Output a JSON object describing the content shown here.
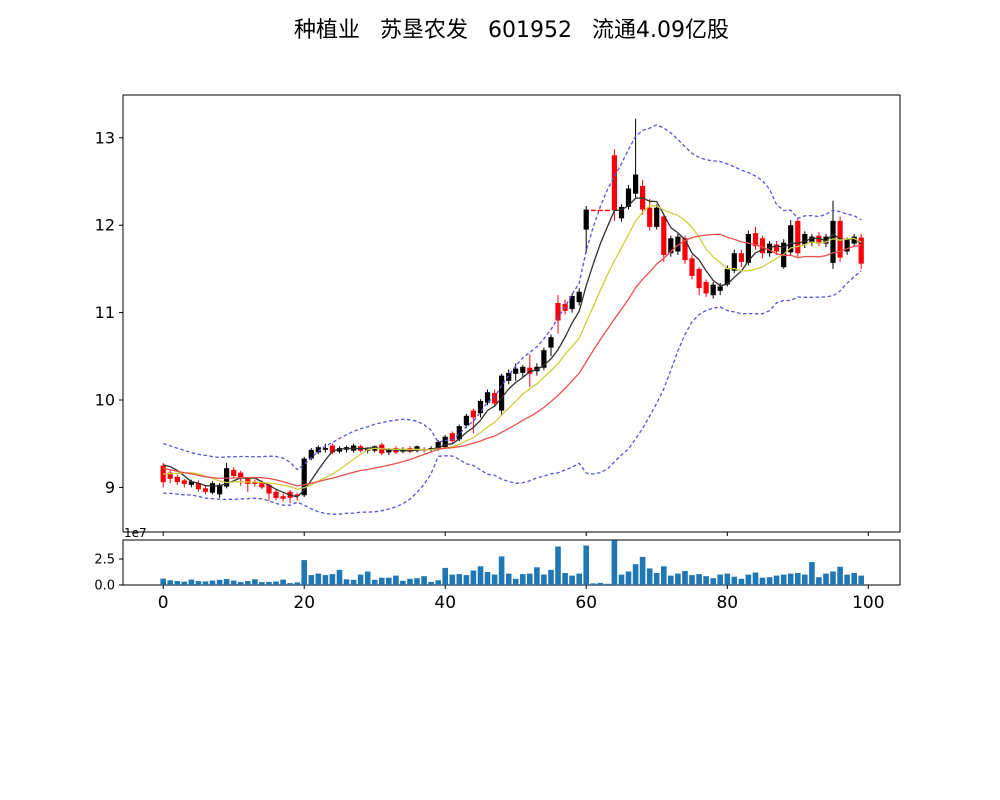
{
  "chart_data": {
    "type": "candlestick",
    "title": "种植业 苏垦农发 601952 流通4.09亿股",
    "xlim": [
      -5.7,
      104.5
    ],
    "xticks": [
      0,
      20,
      40,
      60,
      80,
      100
    ],
    "price_panel": {
      "ylim": [
        8.49,
        13.49
      ],
      "yticks": [
        9,
        10,
        11,
        12,
        13
      ]
    },
    "volume_panel": {
      "ylim_1e7": [
        0,
        4.33
      ],
      "ytick_values_1e7": [
        0,
        2.5
      ],
      "ytick_labels": [
        "0.0",
        "2.5"
      ],
      "offset_text": "1e7"
    },
    "candles": {
      "open": [
        9.25,
        9.17,
        9.12,
        9.08,
        9.03,
        9.05,
        8.99,
        8.94,
        8.92,
        9.01,
        9.2,
        9.17,
        9.1,
        9.06,
        9.06,
        9.03,
        8.95,
        8.9,
        8.95,
        8.92,
        8.91,
        9.33,
        9.4,
        9.43,
        9.48,
        9.41,
        9.43,
        9.42,
        9.47,
        9.42,
        9.42,
        9.49,
        9.4,
        9.45,
        9.41,
        9.45,
        9.42,
        9.44,
        9.43,
        9.44,
        9.46,
        9.62,
        9.55,
        9.71,
        9.88,
        9.85,
        9.97,
        10.08,
        9.88,
        10.22,
        10.3,
        10.31,
        10.37,
        10.33,
        10.37,
        10.6,
        11.11,
        11.1,
        11.04,
        11.12,
        11.95,
        12.17,
        12.17,
        12.17,
        12.8,
        12.08,
        12.21,
        12.36,
        12.45,
        12.2,
        11.98,
        12.1,
        11.68,
        11.7,
        11.85,
        11.62,
        11.5,
        11.35,
        11.2,
        11.25,
        11.32,
        11.48,
        11.68,
        11.57,
        11.91,
        11.85,
        11.68,
        11.78,
        11.52,
        11.69,
        12.05,
        11.78,
        11.8,
        11.88,
        11.79,
        11.57,
        12.05,
        11.7,
        11.79,
        11.86
      ],
      "high": [
        9.28,
        9.2,
        9.15,
        9.1,
        9.09,
        9.08,
        9.02,
        9.07,
        9.05,
        9.28,
        9.23,
        9.19,
        9.12,
        9.09,
        9.08,
        9.05,
        8.98,
        8.93,
        8.97,
        8.94,
        9.35,
        9.45,
        9.48,
        9.5,
        9.5,
        9.47,
        9.48,
        9.5,
        9.49,
        9.46,
        9.48,
        9.51,
        9.45,
        9.47,
        9.46,
        9.47,
        9.48,
        9.46,
        9.47,
        9.54,
        9.6,
        9.64,
        9.72,
        9.84,
        9.9,
        10.01,
        10.12,
        10.12,
        10.3,
        10.35,
        10.42,
        10.4,
        10.52,
        10.42,
        10.6,
        10.75,
        11.2,
        11.15,
        11.22,
        11.28,
        12.22,
        12.175,
        12.175,
        12.175,
        12.87,
        12.24,
        12.46,
        13.22,
        12.52,
        12.3,
        12.24,
        12.12,
        11.88,
        11.9,
        11.88,
        11.66,
        11.52,
        11.38,
        11.35,
        11.34,
        11.54,
        11.72,
        11.72,
        11.94,
        11.98,
        11.88,
        11.82,
        11.82,
        11.84,
        12.06,
        12.08,
        11.93,
        11.9,
        11.92,
        11.9,
        12.28,
        12.1,
        11.86,
        11.9,
        11.9
      ],
      "low": [
        9.0,
        9.05,
        9.03,
        9.0,
        9.0,
        8.95,
        8.92,
        8.92,
        8.88,
        8.99,
        9.11,
        9.02,
        8.95,
        9.01,
        8.98,
        8.85,
        8.85,
        8.84,
        8.82,
        8.85,
        8.89,
        9.31,
        9.38,
        9.4,
        9.38,
        9.39,
        9.4,
        9.4,
        9.4,
        9.39,
        9.4,
        9.37,
        9.37,
        9.38,
        9.39,
        9.39,
        9.4,
        9.4,
        9.41,
        9.42,
        9.44,
        9.5,
        9.53,
        9.68,
        9.62,
        9.8,
        9.94,
        9.92,
        9.82,
        10.18,
        10.22,
        10.26,
        10.15,
        10.28,
        10.34,
        10.5,
        10.76,
        10.98,
        11.0,
        11.08,
        11.68,
        12.16,
        12.16,
        12.16,
        12.05,
        12.04,
        12.18,
        12.3,
        12.12,
        11.94,
        11.95,
        11.58,
        11.64,
        11.66,
        11.56,
        11.38,
        11.2,
        11.18,
        11.16,
        11.2,
        11.3,
        11.45,
        11.52,
        11.54,
        11.72,
        11.62,
        11.64,
        11.66,
        11.5,
        11.66,
        11.64,
        11.74,
        11.76,
        11.76,
        11.75,
        11.5,
        11.58,
        11.66,
        11.76,
        11.5
      ],
      "close": [
        9.06,
        9.1,
        9.06,
        9.04,
        9.07,
        8.98,
        8.95,
        9.05,
        9.03,
        9.22,
        9.13,
        9.11,
        9.04,
        9.04,
        9.0,
        8.93,
        8.88,
        8.87,
        8.88,
        8.9,
        9.33,
        9.43,
        9.46,
        9.45,
        9.4,
        9.45,
        9.46,
        9.48,
        9.42,
        9.44,
        9.47,
        9.39,
        9.44,
        9.4,
        9.44,
        9.41,
        9.47,
        9.42,
        9.45,
        9.52,
        9.58,
        9.53,
        9.7,
        9.82,
        9.8,
        9.99,
        10.09,
        9.96,
        10.28,
        10.31,
        10.36,
        10.38,
        10.3,
        10.38,
        10.57,
        10.72,
        10.91,
        11.02,
        11.19,
        11.24,
        12.18,
        12.165,
        12.165,
        12.165,
        12.17,
        12.21,
        12.42,
        12.58,
        12.18,
        11.98,
        12.2,
        11.66,
        11.85,
        11.87,
        11.6,
        11.42,
        11.28,
        11.22,
        11.32,
        11.3,
        11.5,
        11.68,
        11.58,
        11.9,
        11.76,
        11.68,
        11.79,
        11.7,
        11.8,
        12.0,
        11.68,
        11.9,
        11.87,
        11.79,
        11.87,
        12.05,
        11.63,
        11.83,
        11.87,
        11.56
      ]
    },
    "volume_1e7": [
      0.62,
      0.45,
      0.38,
      0.33,
      0.52,
      0.38,
      0.35,
      0.42,
      0.5,
      0.58,
      0.42,
      0.3,
      0.38,
      0.55,
      0.28,
      0.3,
      0.33,
      0.52,
      0.18,
      0.25,
      2.4,
      0.95,
      1.1,
      0.95,
      1.05,
      1.45,
      0.55,
      0.5,
      1.0,
      1.3,
      0.5,
      0.7,
      0.7,
      0.9,
      0.4,
      0.6,
      0.65,
      0.85,
      0.3,
      0.45,
      1.65,
      1.0,
      1.05,
      0.95,
      1.4,
      1.8,
      1.25,
      1.0,
      2.75,
      1.1,
      0.6,
      1.05,
      1.1,
      1.7,
      1.0,
      1.45,
      3.7,
      1.15,
      0.9,
      1.1,
      3.8,
      0.15,
      0.2,
      0.12,
      4.3,
      1.0,
      1.3,
      2.0,
      2.7,
      1.6,
      1.15,
      1.8,
      0.9,
      1.1,
      1.35,
      0.95,
      1.05,
      0.85,
      0.65,
      1.0,
      1.1,
      0.8,
      0.6,
      1.0,
      1.2,
      0.7,
      0.75,
      0.9,
      1.0,
      1.1,
      1.15,
      1.0,
      2.2,
      0.75,
      1.1,
      1.3,
      1.75,
      1.0,
      1.15,
      0.9
    ],
    "overlays": {
      "warmup_closes": [
        9.42,
        9.4,
        9.38,
        9.35,
        9.32,
        9.28,
        9.24,
        9.2,
        9.16,
        9.1,
        9.05,
        9.02,
        9.0,
        9.05,
        9.12,
        9.2,
        9.28,
        9.35,
        9.4
      ],
      "moving_averages": [
        {
          "name": "ma5",
          "period": 5,
          "color": "#2f2f2f"
        },
        {
          "name": "ma10",
          "period": 10,
          "color": "#d2cd3e"
        },
        {
          "name": "ma20",
          "period": 20,
          "color": "#e9504e"
        }
      ],
      "bollinger": {
        "period": 20,
        "stdev_mult": 2,
        "color": "#5355d8"
      }
    },
    "colors": {
      "up": "#000000",
      "down": "#fb0007",
      "volume": "#1f77b4",
      "axis": "#000000",
      "background": "#ffffff"
    }
  }
}
